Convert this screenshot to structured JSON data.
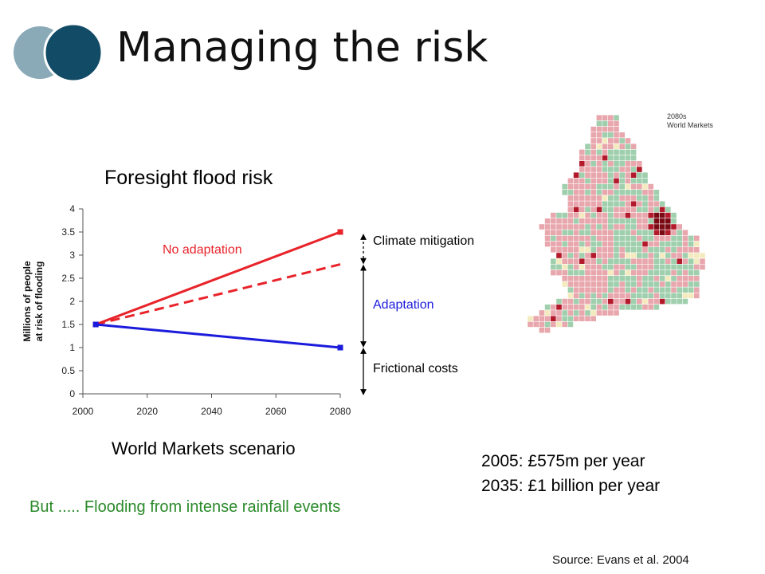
{
  "slide": {
    "title": "Managing the risk",
    "logo_colors": [
      "#8aaab8",
      "#124b66"
    ]
  },
  "chart_data": {
    "type": "line",
    "title": "Foresight flood risk",
    "ylabel": [
      "Millions of people",
      "at risk of flooding"
    ],
    "xlabel": "World Markets scenario",
    "xlim": [
      2000,
      2080
    ],
    "ylim": [
      0,
      4
    ],
    "xticks": [
      2000,
      2020,
      2040,
      2060,
      2080
    ],
    "yticks": [
      0,
      0.5,
      1,
      1.5,
      2,
      2.5,
      3,
      3.5,
      4
    ],
    "grid": false,
    "series": [
      {
        "name": "No adaptation",
        "x": [
          2004,
          2080
        ],
        "y": [
          1.5,
          3.5
        ],
        "color": "#e8232a",
        "style": "solid",
        "markers": true
      },
      {
        "x": [
          2004,
          2080
        ],
        "y": [
          1.5,
          2.8
        ],
        "color": "#e8232a",
        "style": "dashed",
        "markers": false
      },
      {
        "x": [
          2004,
          2080
        ],
        "y": [
          1.5,
          1.0
        ],
        "color": "#1b1bdc",
        "style": "solid",
        "markers": true
      }
    ],
    "series_labels": [
      {
        "text": "No adaptation",
        "color": "#e8232a"
      }
    ],
    "annotations": [
      {
        "text": "Climate mitigation",
        "from": 3.5,
        "to": 2.8,
        "color": "#000000",
        "style": "dashed-arrow"
      },
      {
        "text": "Adaptation",
        "from": 2.8,
        "to": 1.0,
        "color": "#1b1bdc",
        "style": "arrow"
      },
      {
        "text": "Frictional costs",
        "from": 1.0,
        "to": 0,
        "color": "#000000",
        "style": "arrow"
      }
    ]
  },
  "map": {
    "caption_line1": "2080s",
    "caption_line2": "World Markets",
    "colors": {
      "low": "#e8a7ad",
      "green": "#9fcfad",
      "cream": "#f3ebbf",
      "high": "#b3192a",
      "hotspot": "#7a0b14"
    }
  },
  "costs": {
    "line1": "2005: £575m per year",
    "line2": "2035: £1 billion per year"
  },
  "footnote": "But ..... Flooding from intense rainfall events",
  "source": "Source: Evans et al. 2004"
}
